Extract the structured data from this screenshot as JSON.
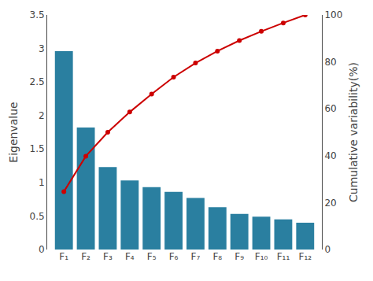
{
  "chart_data": {
    "type": "bar",
    "categories": [
      "F₁",
      "F₂",
      "F₃",
      "F₄",
      "F₅",
      "F₆",
      "F₇",
      "F₈",
      "F₉",
      "F₁₀",
      "F₁₁",
      "F₁₂"
    ],
    "series": [
      {
        "type": "bar",
        "color": "#2a7fa0",
        "values": [
          2.96,
          1.82,
          1.23,
          1.03,
          0.93,
          0.86,
          0.77,
          0.63,
          0.53,
          0.49,
          0.45,
          0.4
        ]
      },
      {
        "type": "line",
        "axis": "y2",
        "color": "#cc0000",
        "marker": "circle",
        "values": [
          24.7,
          39.8,
          50.0,
          58.6,
          66.3,
          73.5,
          79.5,
          84.6,
          89.1,
          93.0,
          96.6,
          100.0
        ]
      }
    ],
    "ylabel": "Eigenvalue",
    "y2label": "Cumulative variability(%)",
    "ylim": [
      0,
      3.5
    ],
    "yticks": [
      0,
      0.5,
      1,
      1.5,
      2,
      2.5,
      3,
      3.5
    ],
    "y2lim": [
      0,
      100
    ],
    "y2ticks": [
      0,
      20,
      40,
      60,
      80,
      100
    ],
    "grid": false
  }
}
